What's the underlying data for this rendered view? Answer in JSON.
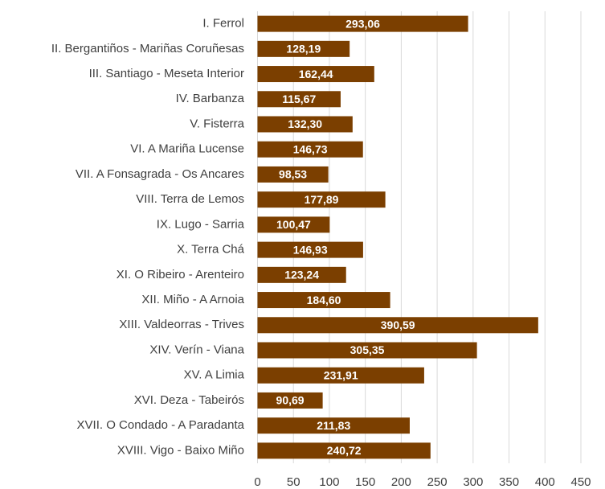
{
  "chart_data": {
    "type": "bar",
    "orientation": "horizontal",
    "categories": [
      "I. Ferrol",
      "II. Bergantiños - Mariñas Coruñesas",
      "III. Santiago - Meseta Interior",
      "IV. Barbanza",
      "V. Fisterra",
      "VI. A Mariña Lucense",
      "VII. A Fonsagrada - Os Ancares",
      "VIII. Terra de Lemos",
      "IX. Lugo - Sarria",
      "X. Terra Chá",
      "XI. O Ribeiro - Arenteiro",
      "XII. Miño - A Arnoia",
      "XIII. Valdeorras - Trives",
      "XIV. Verín - Viana",
      "XV. A Limia",
      "XVI. Deza - Tabeirós",
      "XVII. O Condado - A Paradanta",
      "XVIII. Vigo - Baixo Miño"
    ],
    "values": [
      293.06,
      128.19,
      162.44,
      115.67,
      132.3,
      146.73,
      98.53,
      177.89,
      100.47,
      146.93,
      123.24,
      184.6,
      390.59,
      305.35,
      231.91,
      90.69,
      211.83,
      240.72
    ],
    "value_labels": [
      "293,06",
      "128,19",
      "162,44",
      "115,67",
      "132,30",
      "146,73",
      "98,53",
      "177,89",
      "100,47",
      "146,93",
      "123,24",
      "184,60",
      "390,59",
      "305,35",
      "231,91",
      "90,69",
      "211,83",
      "240,72"
    ],
    "color": "#7b3f00",
    "xlim": [
      0,
      450
    ],
    "xticks": [
      0,
      50,
      100,
      150,
      200,
      250,
      300,
      350,
      400,
      450
    ],
    "grid": true
  }
}
